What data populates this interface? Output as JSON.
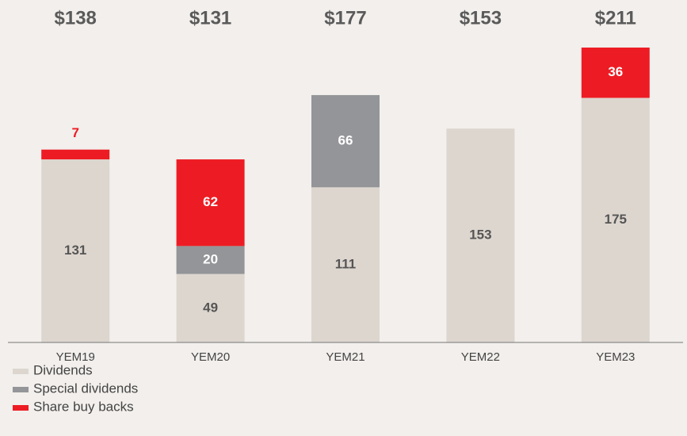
{
  "chart_data": {
    "type": "stacked_bar",
    "categories": [
      "YEM19",
      "YEM20",
      "YEM21",
      "YEM22",
      "YEM23"
    ],
    "total_labels": [
      "$138",
      "$131",
      "$177",
      "$153",
      "$211"
    ],
    "series": [
      {
        "name": "Dividends",
        "color": "#ddd6cf",
        "label_color": "#555555",
        "values": [
          131,
          49,
          111,
          153,
          175
        ]
      },
      {
        "name": "Special dividends",
        "color": "#939598",
        "label_color": "#ffffff",
        "values": [
          null,
          20,
          66,
          null,
          null
        ]
      },
      {
        "name": "Share buy backs",
        "color": "#ed1c24",
        "label_color": "#ffffff",
        "values": [
          7,
          62,
          null,
          null,
          36
        ]
      }
    ],
    "ylim": [
      0,
      211
    ]
  }
}
